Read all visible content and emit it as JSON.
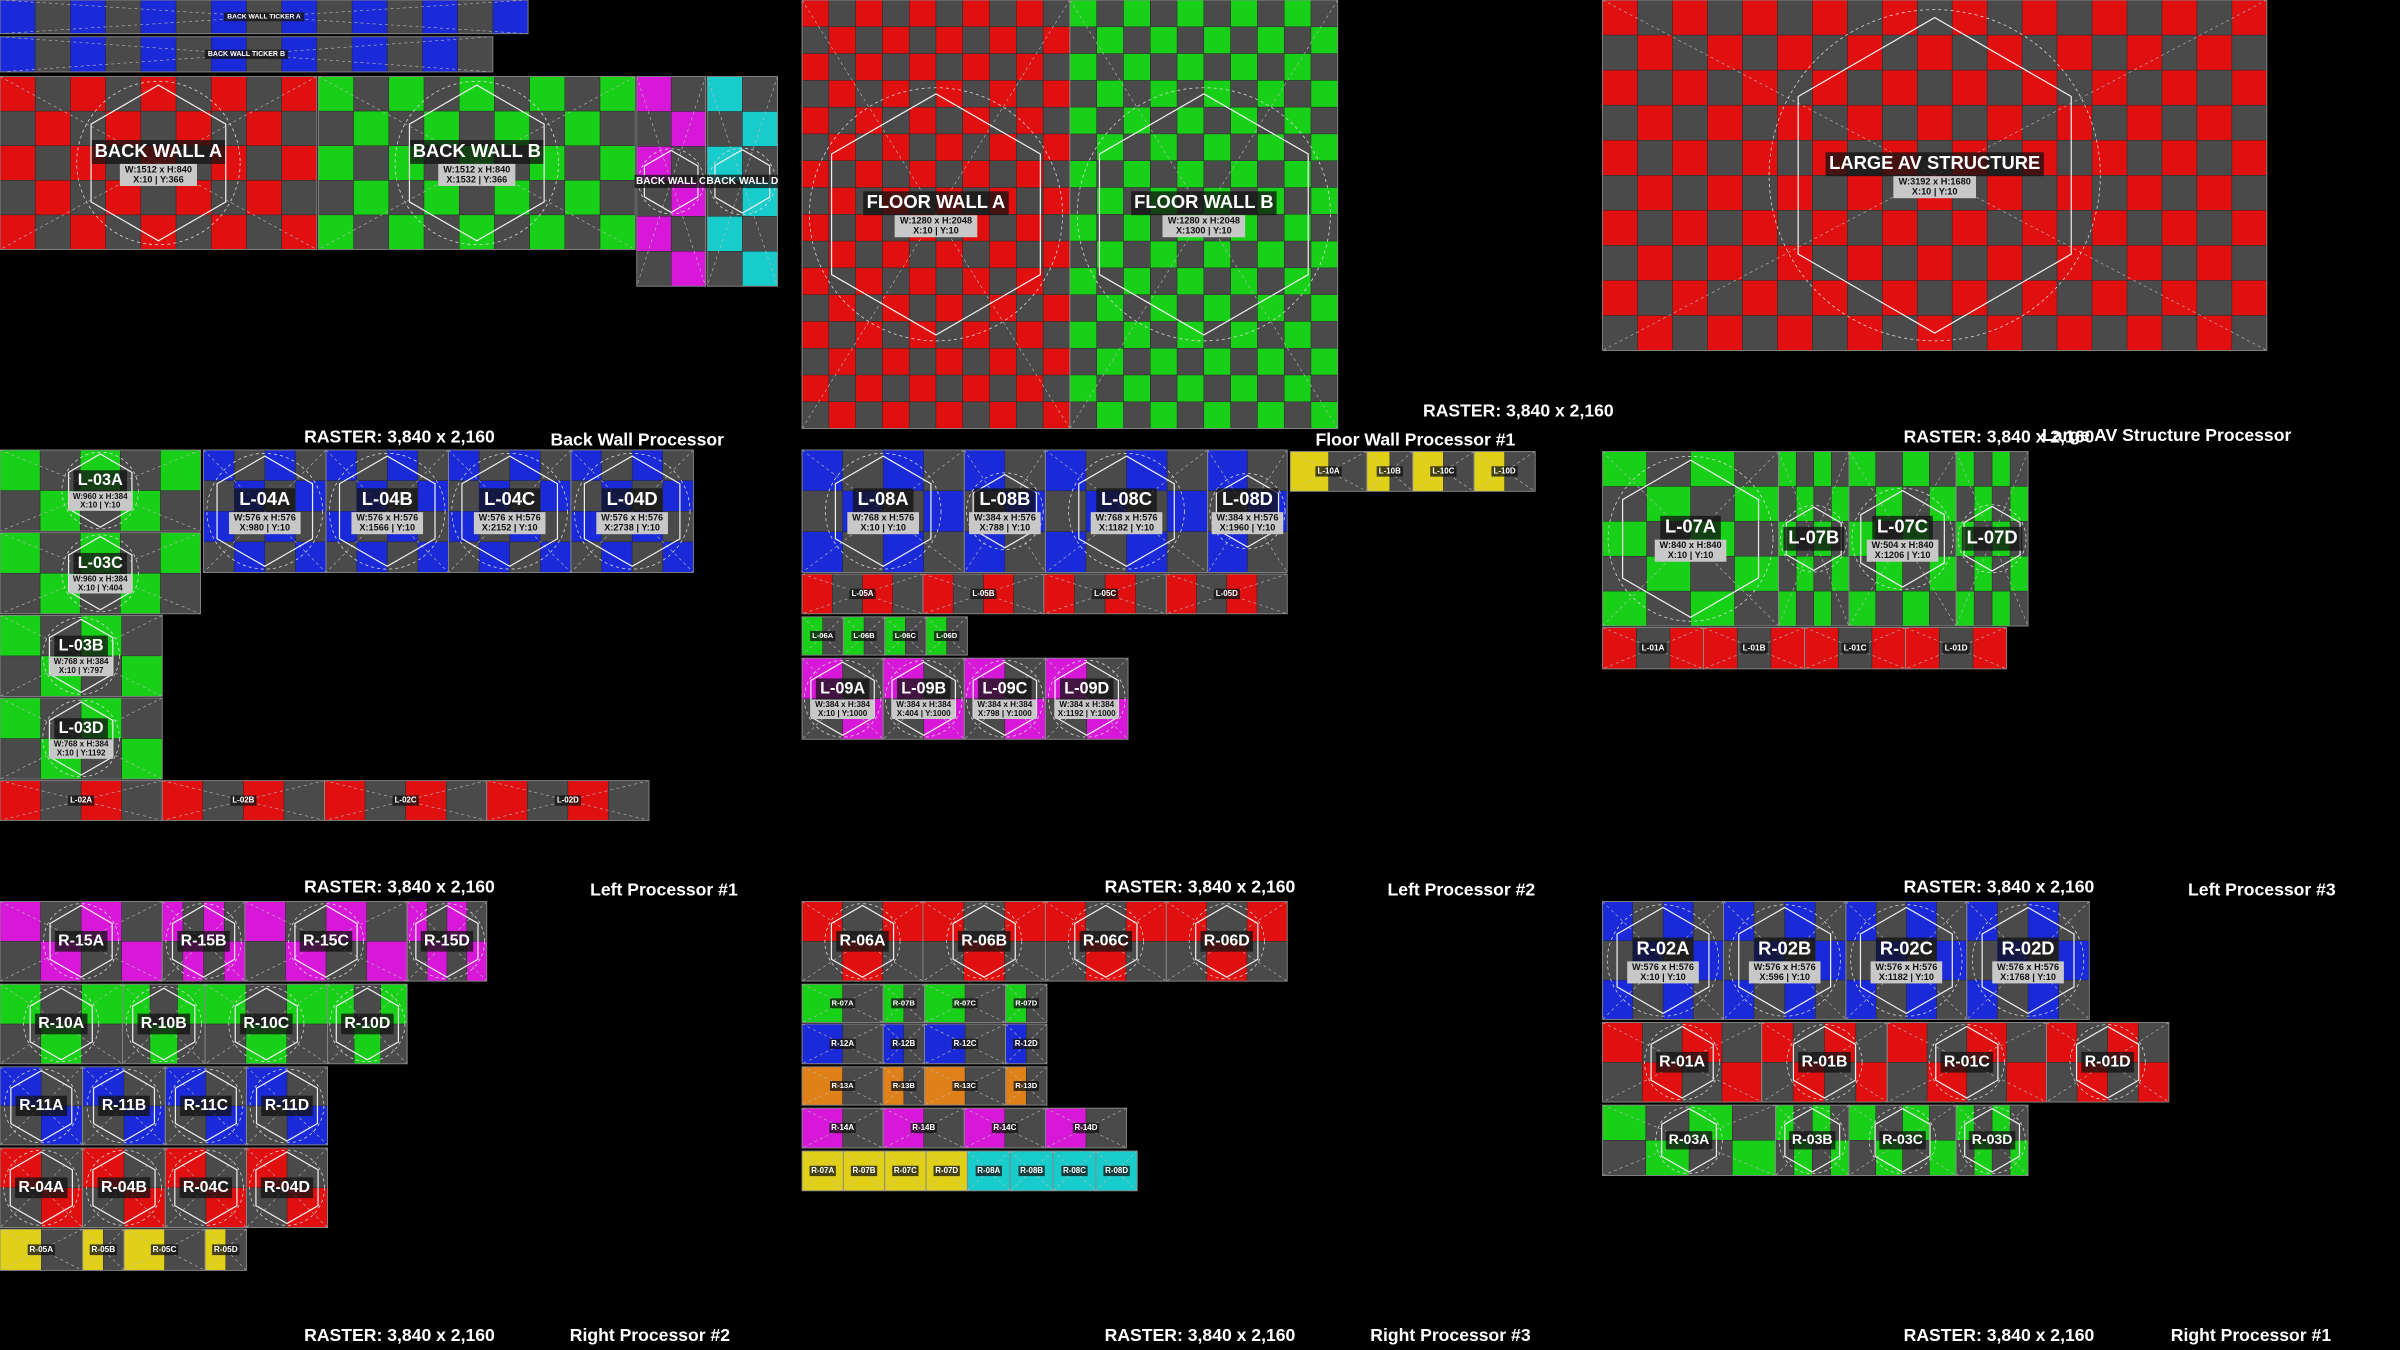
{
  "processors": [
    {
      "raster": "RASTER: 3,840 x 2,160",
      "name": "Back Wall Processor",
      "panels": [
        {
          "label": "BACK WALL TICKER A",
          "color": "#1a2ad8"
        },
        {
          "label": "BACK WALL TICKER B",
          "color": "#1a2ad8"
        },
        {
          "label": "BACK WALL A",
          "color": "#e01010",
          "size": "W:1512 x H:840",
          "pos": "X:10 | Y:366"
        },
        {
          "label": "BACK WALL B",
          "color": "#18d018",
          "size": "W:1512 x H:840",
          "pos": "X:1532 | Y:366"
        },
        {
          "label": "BACK WALL C",
          "color": "#d818d8"
        },
        {
          "label": "BACK WALL D",
          "color": "#18cccc"
        }
      ]
    },
    {
      "raster": "RASTER: 3,840 x 2,160",
      "name": "Floor Wall Processor #1",
      "panels": [
        {
          "label": "FLOOR WALL A",
          "color": "#e01010",
          "size": "W:1280 x H:2048",
          "pos": "X:10 | Y:10"
        },
        {
          "label": "FLOOR WALL B",
          "color": "#18d018",
          "size": "W:1280 x H:2048",
          "pos": "X:1300 | Y:10"
        }
      ]
    },
    {
      "raster": "RASTER: 3,840 x 2,160",
      "name": "Large AV Structure Processor",
      "panels": [
        {
          "label": "LARGE AV STRUCTURE",
          "color": "#e01010",
          "size": "W:3192 x H:1680",
          "pos": "X:10 | Y:10"
        }
      ]
    },
    {
      "raster": "RASTER: 3,840 x 2,160",
      "name": "Left Processor #1",
      "panels": [
        {
          "label": "L-03A",
          "color": "#18d018",
          "size": "W:960 x H:384",
          "pos": "X:10 | Y:10"
        },
        {
          "label": "L-03C",
          "color": "#18d018",
          "size": "W:960 x H:384",
          "pos": "X:10 | Y:404"
        },
        {
          "label": "L-03B",
          "color": "#18d018",
          "size": "W:768 x H:384",
          "pos": "X:10 | Y:797"
        },
        {
          "label": "L-03D",
          "color": "#18d018",
          "size": "W:768 x H:384",
          "pos": "X:10 | Y:1192"
        },
        {
          "label": "L-04A",
          "color": "#1a2ad8",
          "size": "W:576 x H:576",
          "pos": "X:980 | Y:10"
        },
        {
          "label": "L-04B",
          "color": "#1a2ad8",
          "size": "W:576 x H:576",
          "pos": "X:1566 | Y:10"
        },
        {
          "label": "L-04C",
          "color": "#1a2ad8",
          "size": "W:576 x H:576",
          "pos": "X:2152 | Y:10"
        },
        {
          "label": "L-04D",
          "color": "#1a2ad8",
          "size": "W:576 x H:576",
          "pos": "X:2738 | Y:10"
        },
        {
          "label": "L-02A",
          "color": "#e01010"
        },
        {
          "label": "L-02B",
          "color": "#e01010"
        },
        {
          "label": "L-02C",
          "color": "#e01010"
        },
        {
          "label": "L-02D",
          "color": "#e01010"
        }
      ]
    },
    {
      "raster": "RASTER: 3,840 x 2,160",
      "name": "Left Processor #2",
      "panels": [
        {
          "label": "L-08A",
          "color": "#1a2ad8",
          "size": "W:768 x H:576",
          "pos": "X:10 | Y:10"
        },
        {
          "label": "L-08B",
          "color": "#1a2ad8",
          "size": "W:384 x H:576",
          "pos": "X:788 | Y:10"
        },
        {
          "label": "L-08C",
          "color": "#1a2ad8",
          "size": "W:768 x H:576",
          "pos": "X:1182 | Y:10"
        },
        {
          "label": "L-08D",
          "color": "#1a2ad8",
          "size": "W:384 x H:576",
          "pos": "X:1960 | Y:10"
        },
        {
          "label": "L-05A",
          "color": "#e01010"
        },
        {
          "label": "L-05B",
          "color": "#e01010"
        },
        {
          "label": "L-05C",
          "color": "#e01010"
        },
        {
          "label": "L-05D",
          "color": "#e01010"
        },
        {
          "label": "L-06A",
          "color": "#18d018"
        },
        {
          "label": "L-06B",
          "color": "#18d018"
        },
        {
          "label": "L-06C",
          "color": "#18d018"
        },
        {
          "label": "L-06D",
          "color": "#18d018"
        },
        {
          "label": "L-09A",
          "color": "#d818d8",
          "size": "W:384 x H:384",
          "pos": "X:10 | Y:1000"
        },
        {
          "label": "L-09B",
          "color": "#d818d8",
          "size": "W:384 x H:384",
          "pos": "X:404 | Y:1000"
        },
        {
          "label": "L-09C",
          "color": "#d818d8",
          "size": "W:384 x H:384",
          "pos": "X:798 | Y:1000"
        },
        {
          "label": "L-09D",
          "color": "#d818d8",
          "size": "W:384 x H:384",
          "pos": "X:1192 | Y:1000"
        },
        {
          "label": "L-10A",
          "color": "#e0d018"
        },
        {
          "label": "L-10B",
          "color": "#e0d018"
        },
        {
          "label": "L-10C",
          "color": "#e0d018"
        },
        {
          "label": "L-10D",
          "color": "#e0d018"
        }
      ]
    },
    {
      "raster": "RASTER: 3,840 x 2,160",
      "name": "Left Processor #3",
      "panels": [
        {
          "label": "L-07A",
          "color": "#18d018",
          "size": "W:840 x H:840",
          "pos": "X:10 | Y:10"
        },
        {
          "label": "L-07B",
          "color": "#18d018"
        },
        {
          "label": "L-07C",
          "color": "#18d018",
          "size": "W:504 x H:840",
          "pos": "X:1206 | Y:10"
        },
        {
          "label": "L-07D",
          "color": "#18d018"
        },
        {
          "label": "L-01A",
          "color": "#e01010"
        },
        {
          "label": "L-01B",
          "color": "#e01010"
        },
        {
          "label": "L-01C",
          "color": "#e01010"
        },
        {
          "label": "L-01D",
          "color": "#e01010"
        }
      ]
    },
    {
      "raster": "RASTER: 3,840 x 2,160",
      "name": "Right Processor #2",
      "panels": [
        {
          "label": "R-15A",
          "color": "#d818d8"
        },
        {
          "label": "R-15B",
          "color": "#d818d8"
        },
        {
          "label": "R-15C",
          "color": "#d818d8"
        },
        {
          "label": "R-15D",
          "color": "#d818d8"
        },
        {
          "label": "R-10A",
          "color": "#18d018"
        },
        {
          "label": "R-10B",
          "color": "#18d018"
        },
        {
          "label": "R-10C",
          "color": "#18d018"
        },
        {
          "label": "R-10D",
          "color": "#18d018"
        },
        {
          "label": "R-11A",
          "color": "#1a2ad8"
        },
        {
          "label": "R-11B",
          "color": "#1a2ad8"
        },
        {
          "label": "R-11C",
          "color": "#1a2ad8"
        },
        {
          "label": "R-11D",
          "color": "#1a2ad8"
        },
        {
          "label": "R-04A",
          "color": "#e01010"
        },
        {
          "label": "R-04B",
          "color": "#e01010"
        },
        {
          "label": "R-04C",
          "color": "#e01010"
        },
        {
          "label": "R-04D",
          "color": "#e01010"
        },
        {
          "label": "R-05A",
          "color": "#e0d018"
        },
        {
          "label": "R-05B",
          "color": "#e0d018"
        },
        {
          "label": "R-05C",
          "color": "#e0d018"
        },
        {
          "label": "R-05D",
          "color": "#e0d018"
        }
      ]
    },
    {
      "raster": "RASTER: 3,840 x 2,160",
      "name": "Right Processor #3",
      "panels": [
        {
          "label": "R-06A",
          "color": "#e01010"
        },
        {
          "label": "R-06B",
          "color": "#e01010"
        },
        {
          "label": "R-06C",
          "color": "#e01010"
        },
        {
          "label": "R-06D",
          "color": "#e01010"
        },
        {
          "label": "R-07A",
          "color": "#18d018"
        },
        {
          "label": "R-07B",
          "color": "#18d018"
        },
        {
          "label": "R-07C",
          "color": "#18d018"
        },
        {
          "label": "R-07D",
          "color": "#18d018"
        },
        {
          "label": "R-12A",
          "color": "#1a2ad8"
        },
        {
          "label": "R-12B",
          "color": "#1a2ad8"
        },
        {
          "label": "R-12C",
          "color": "#1a2ad8"
        },
        {
          "label": "R-12D",
          "color": "#1a2ad8"
        },
        {
          "label": "R-13A",
          "color": "#e08018"
        },
        {
          "label": "R-13B",
          "color": "#e08018"
        },
        {
          "label": "R-13C",
          "color": "#e08018"
        },
        {
          "label": "R-13D",
          "color": "#e08018"
        },
        {
          "label": "R-14A",
          "color": "#d818d8"
        },
        {
          "label": "R-14B",
          "color": "#d818d8"
        },
        {
          "label": "R-14C",
          "color": "#d818d8"
        },
        {
          "label": "R-14D",
          "color": "#d818d8"
        },
        {
          "label": "R-07A",
          "color": "#e0d018"
        },
        {
          "label": "R-07B",
          "color": "#e0d018"
        },
        {
          "label": "R-07C",
          "color": "#e0d018"
        },
        {
          "label": "R-07D",
          "color": "#e0d018"
        },
        {
          "label": "R-08A",
          "color": "#18cccc"
        },
        {
          "label": "R-08B",
          "color": "#18cccc"
        },
        {
          "label": "R-08C",
          "color": "#18cccc"
        },
        {
          "label": "R-08D",
          "color": "#18cccc"
        }
      ]
    },
    {
      "raster": "RASTER: 3,840 x 2,160",
      "name": "Right Processor #1",
      "panels": [
        {
          "label": "R-02A",
          "color": "#1a2ad8",
          "size": "W:576 x H:576",
          "pos": "X:10 | Y:10"
        },
        {
          "label": "R-02B",
          "color": "#1a2ad8",
          "size": "W:576 x H:576",
          "pos": "X:596 | Y:10"
        },
        {
          "label": "R-02C",
          "color": "#1a2ad8",
          "size": "W:576 x H:576",
          "pos": "X:1182 | Y:10"
        },
        {
          "label": "R-02D",
          "color": "#1a2ad8",
          "size": "W:576 x H:576",
          "pos": "X:1768 | Y:10"
        },
        {
          "label": "R-01A",
          "color": "#e01010"
        },
        {
          "label": "R-01B",
          "color": "#e01010"
        },
        {
          "label": "R-01C",
          "color": "#e01010"
        },
        {
          "label": "R-01D",
          "color": "#e01010"
        },
        {
          "label": "R-03A",
          "color": "#18d018"
        },
        {
          "label": "R-03B",
          "color": "#18d018"
        },
        {
          "label": "R-03C",
          "color": "#18d018"
        },
        {
          "label": "R-03D",
          "color": "#18d018"
        }
      ]
    }
  ]
}
